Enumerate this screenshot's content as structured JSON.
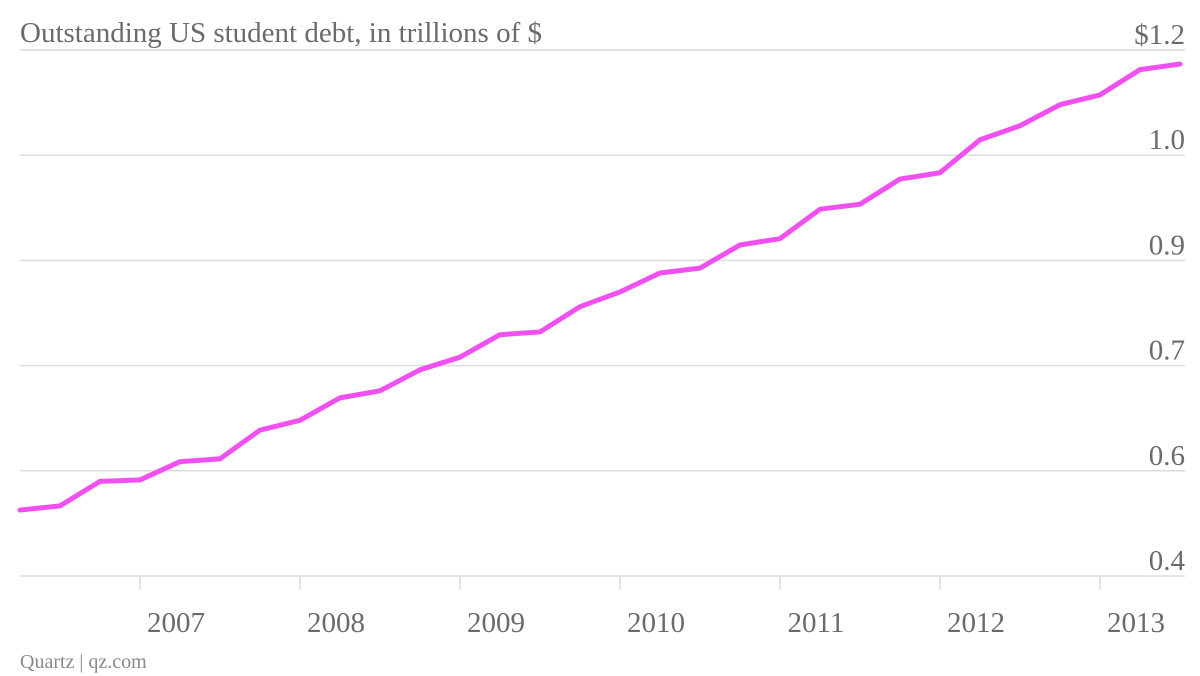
{
  "chart_data": {
    "type": "line",
    "title": "Outstanding US student debt, in trillions of $",
    "source": "Quartz | qz.com",
    "categories": [
      null,
      null,
      null,
      "2007",
      null,
      null,
      null,
      "2008",
      null,
      null,
      null,
      "2009",
      null,
      null,
      null,
      "2010",
      null,
      null,
      null,
      "2011",
      null,
      null,
      null,
      "2012",
      null,
      null,
      null,
      "2013",
      null,
      null
    ],
    "series": [
      {
        "name": "Outstanding US student debt",
        "color": "#f050f0",
        "values": [
          0.494,
          0.5,
          0.535,
          0.537,
          0.563,
          0.567,
          0.608,
          0.622,
          0.654,
          0.664,
          0.694,
          0.712,
          0.744,
          0.748,
          0.784,
          0.805,
          0.832,
          0.839,
          0.872,
          0.881,
          0.923,
          0.93,
          0.966,
          0.975,
          1.022,
          1.042,
          1.072,
          1.086,
          1.122,
          1.13
        ]
      }
    ],
    "ylim": [
      0.4,
      1.15
    ],
    "yticks": [
      0.4,
      {
        "value": 0.55,
        "label": "0.6"
      },
      0.7,
      {
        "value": 0.85,
        "label": "0.9"
      },
      {
        "value": 1.0,
        "label": "1.0"
      },
      {
        "value": 1.15,
        "label": "$1.2"
      }
    ],
    "grid": true
  }
}
